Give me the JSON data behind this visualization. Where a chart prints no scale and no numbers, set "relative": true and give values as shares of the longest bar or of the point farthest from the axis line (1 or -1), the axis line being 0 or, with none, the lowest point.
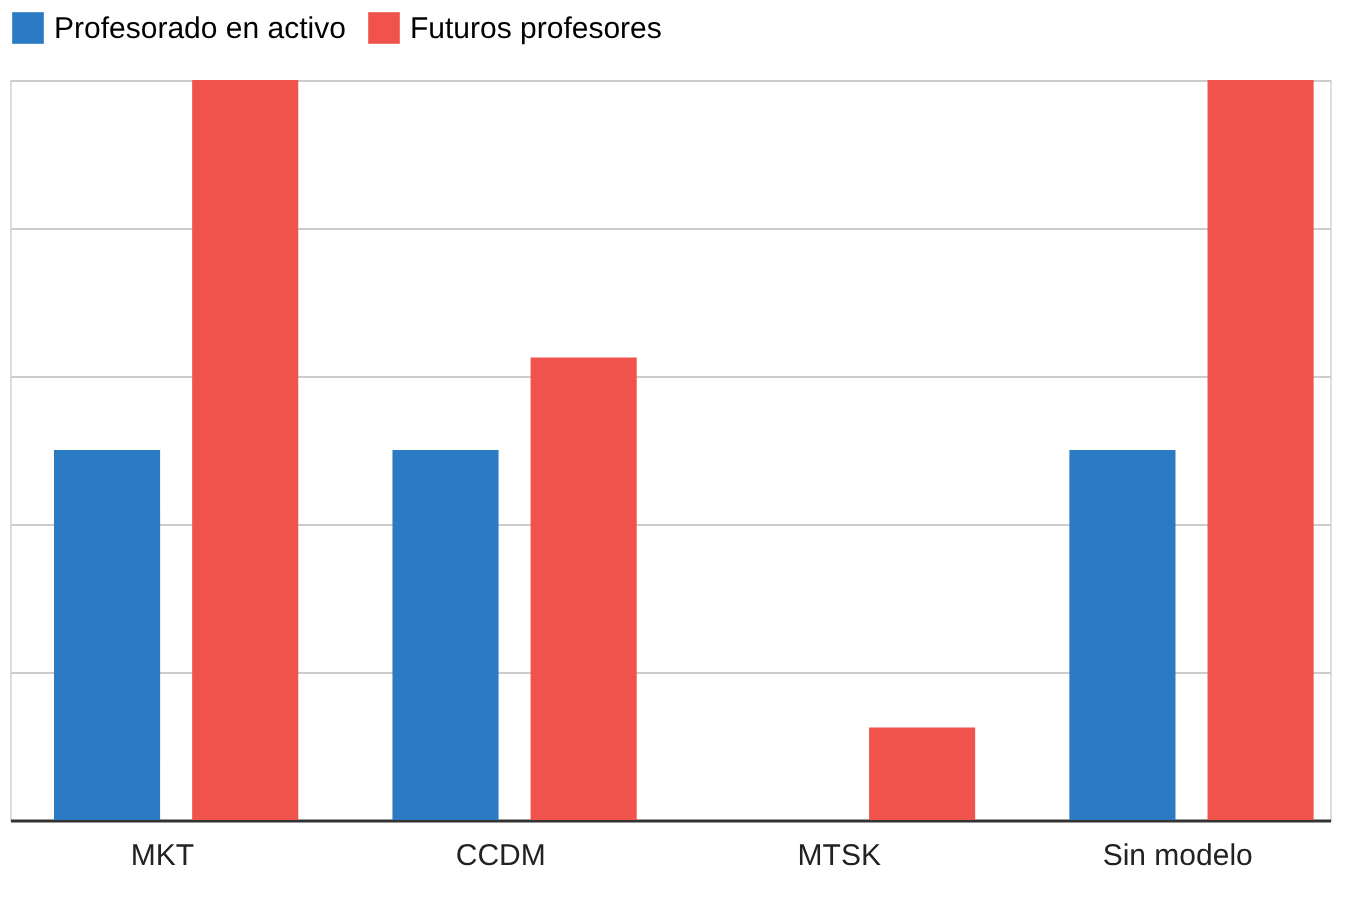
{
  "chart_data": {
    "type": "bar",
    "categories": [
      "MKT",
      "CCDM",
      "MTSK",
      "Sin modelo"
    ],
    "series": [
      {
        "name": "Profesorado en activo",
        "color": "#2a7bc4",
        "values": [
          0.5,
          0.5,
          0,
          0.5
        ]
      },
      {
        "name": "Futuros profesores",
        "color": "#ef534b",
        "values": [
          1,
          0.625,
          0.125,
          1
        ]
      }
    ],
    "relative": true,
    "grid": "y",
    "legend": "top"
  }
}
